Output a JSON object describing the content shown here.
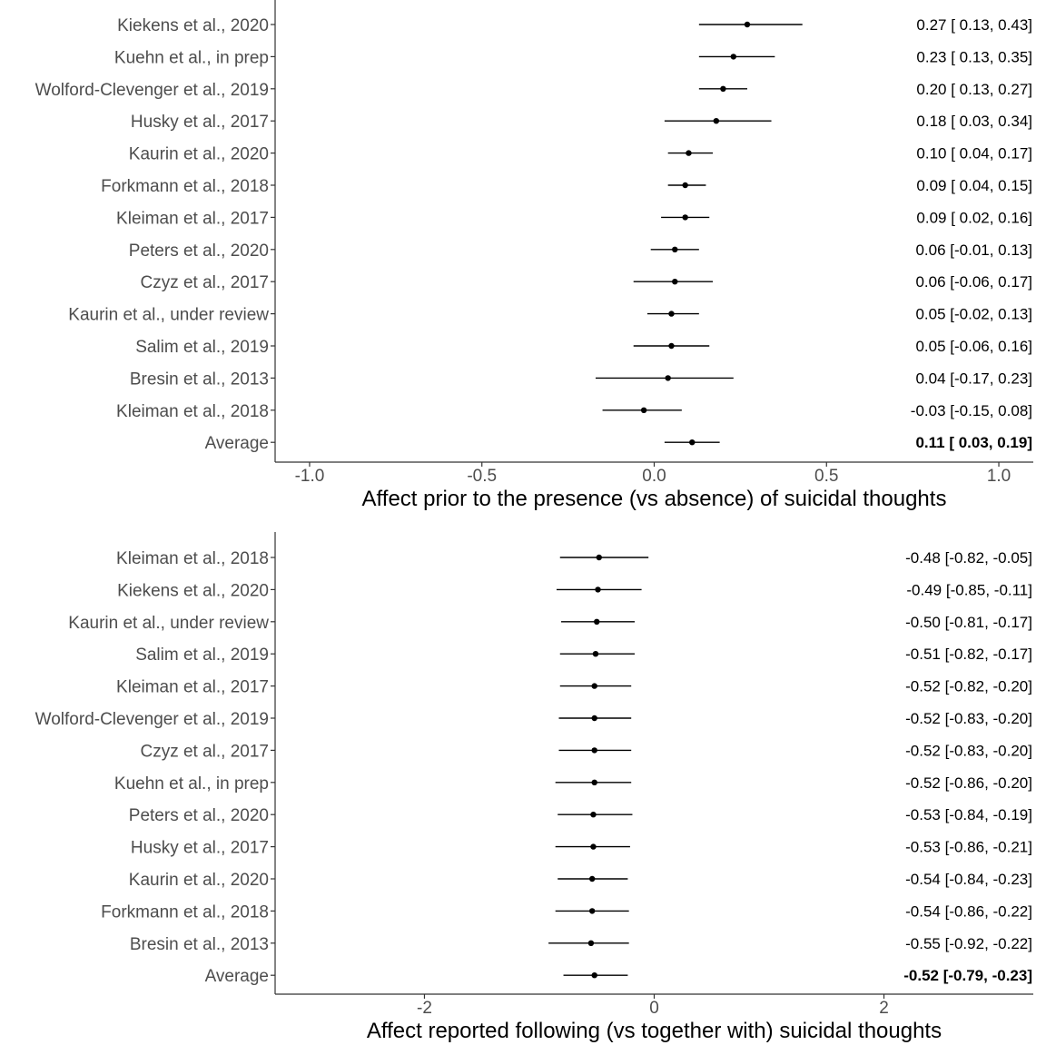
{
  "chart_data": [
    {
      "type": "forest",
      "xlabel": "Affect prior to the presence (vs absence) of suicidal thoughts",
      "xlim": [
        -1.1,
        1.1
      ],
      "xticks": [
        -1.0,
        -0.5,
        0.0,
        0.5,
        1.0
      ],
      "xtick_labels": [
        "-1.0",
        "-0.5",
        "0.0",
        "0.5",
        "1.0"
      ],
      "rows": [
        {
          "study": "Kiekens et al., 2020",
          "estimate": 0.27,
          "lower": 0.13,
          "upper": 0.43,
          "ci_text": "0.27 [ 0.13, 0.43]"
        },
        {
          "study": "Kuehn et al., in prep",
          "estimate": 0.23,
          "lower": 0.13,
          "upper": 0.35,
          "ci_text": "0.23 [ 0.13, 0.35]"
        },
        {
          "study": "Wolford-Clevenger et al., 2019",
          "estimate": 0.2,
          "lower": 0.13,
          "upper": 0.27,
          "ci_text": "0.20 [ 0.13, 0.27]"
        },
        {
          "study": "Husky et al., 2017",
          "estimate": 0.18,
          "lower": 0.03,
          "upper": 0.34,
          "ci_text": "0.18 [ 0.03, 0.34]"
        },
        {
          "study": "Kaurin et al., 2020",
          "estimate": 0.1,
          "lower": 0.04,
          "upper": 0.17,
          "ci_text": "0.10 [ 0.04, 0.17]"
        },
        {
          "study": "Forkmann et al., 2018",
          "estimate": 0.09,
          "lower": 0.04,
          "upper": 0.15,
          "ci_text": "0.09 [ 0.04, 0.15]"
        },
        {
          "study": "Kleiman et al., 2017",
          "estimate": 0.09,
          "lower": 0.02,
          "upper": 0.16,
          "ci_text": "0.09 [ 0.02, 0.16]"
        },
        {
          "study": "Peters et al., 2020",
          "estimate": 0.06,
          "lower": -0.01,
          "upper": 0.13,
          "ci_text": "0.06 [-0.01, 0.13]"
        },
        {
          "study": "Czyz et al., 2017",
          "estimate": 0.06,
          "lower": -0.06,
          "upper": 0.17,
          "ci_text": "0.06 [-0.06, 0.17]"
        },
        {
          "study": "Kaurin et al., under review",
          "estimate": 0.05,
          "lower": -0.02,
          "upper": 0.13,
          "ci_text": "0.05 [-0.02, 0.13]"
        },
        {
          "study": "Salim et al., 2019",
          "estimate": 0.05,
          "lower": -0.06,
          "upper": 0.16,
          "ci_text": "0.05 [-0.06, 0.16]"
        },
        {
          "study": "Bresin et al., 2013",
          "estimate": 0.04,
          "lower": -0.17,
          "upper": 0.23,
          "ci_text": "0.04 [-0.17, 0.23]"
        },
        {
          "study": "Kleiman et al., 2018",
          "estimate": -0.03,
          "lower": -0.15,
          "upper": 0.08,
          "ci_text": "-0.03 [-0.15, 0.08]"
        },
        {
          "study": "Average",
          "estimate": 0.11,
          "lower": 0.03,
          "upper": 0.19,
          "ci_text": "0.11 [ 0.03, 0.19]",
          "bold": true
        }
      ]
    },
    {
      "type": "forest",
      "xlabel": "Affect reported following (vs together with) suicidal thoughts",
      "xlim": [
        -3.3,
        3.3
      ],
      "xticks": [
        -2,
        0,
        2
      ],
      "xtick_labels": [
        "-2",
        "0",
        "2"
      ],
      "rows": [
        {
          "study": "Kleiman et al., 2018",
          "estimate": -0.48,
          "lower": -0.82,
          "upper": -0.05,
          "ci_text": "-0.48 [-0.82, -0.05]"
        },
        {
          "study": "Kiekens et al., 2020",
          "estimate": -0.49,
          "lower": -0.85,
          "upper": -0.11,
          "ci_text": "-0.49 [-0.85, -0.11]"
        },
        {
          "study": "Kaurin et al., under review",
          "estimate": -0.5,
          "lower": -0.81,
          "upper": -0.17,
          "ci_text": "-0.50 [-0.81, -0.17]"
        },
        {
          "study": "Salim et al., 2019",
          "estimate": -0.51,
          "lower": -0.82,
          "upper": -0.17,
          "ci_text": "-0.51 [-0.82, -0.17]"
        },
        {
          "study": "Kleiman et al., 2017",
          "estimate": -0.52,
          "lower": -0.82,
          "upper": -0.2,
          "ci_text": "-0.52 [-0.82, -0.20]"
        },
        {
          "study": "Wolford-Clevenger et al., 2019",
          "estimate": -0.52,
          "lower": -0.83,
          "upper": -0.2,
          "ci_text": "-0.52 [-0.83, -0.20]"
        },
        {
          "study": "Czyz et al., 2017",
          "estimate": -0.52,
          "lower": -0.83,
          "upper": -0.2,
          "ci_text": "-0.52 [-0.83, -0.20]"
        },
        {
          "study": "Kuehn et al., in prep",
          "estimate": -0.52,
          "lower": -0.86,
          "upper": -0.2,
          "ci_text": "-0.52 [-0.86, -0.20]"
        },
        {
          "study": "Peters et al., 2020",
          "estimate": -0.53,
          "lower": -0.84,
          "upper": -0.19,
          "ci_text": "-0.53 [-0.84, -0.19]"
        },
        {
          "study": "Husky et al., 2017",
          "estimate": -0.53,
          "lower": -0.86,
          "upper": -0.21,
          "ci_text": "-0.53 [-0.86, -0.21]"
        },
        {
          "study": "Kaurin et al., 2020",
          "estimate": -0.54,
          "lower": -0.84,
          "upper": -0.23,
          "ci_text": "-0.54 [-0.84, -0.23]"
        },
        {
          "study": "Forkmann et al., 2018",
          "estimate": -0.54,
          "lower": -0.86,
          "upper": -0.22,
          "ci_text": "-0.54 [-0.86, -0.22]"
        },
        {
          "study": "Bresin et al., 2013",
          "estimate": -0.55,
          "lower": -0.92,
          "upper": -0.22,
          "ci_text": "-0.55 [-0.92, -0.22]"
        },
        {
          "study": "Average",
          "estimate": -0.52,
          "lower": -0.79,
          "upper": -0.23,
          "ci_text": "-0.52 [-0.79, -0.23]",
          "bold": true
        }
      ]
    }
  ],
  "colors": {
    "marks": "#000000",
    "study_text": "#4d4d4d",
    "axis": "#333333"
  }
}
